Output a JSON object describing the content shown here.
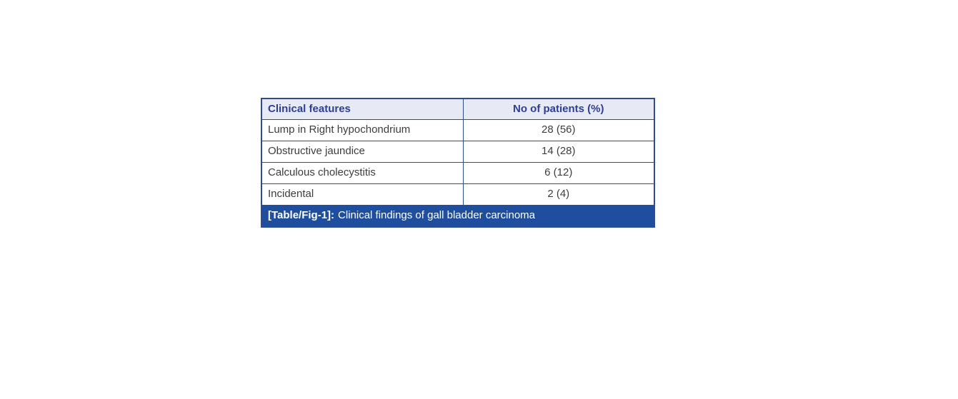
{
  "table": {
    "headers": {
      "feature": "Clinical features",
      "value": "No of patients (%)"
    },
    "rows": [
      {
        "feature": "Lump in Right hypochondrium",
        "value": "28 (56)"
      },
      {
        "feature": "Obstructive jaundice",
        "value": "14 (28)"
      },
      {
        "feature": "Calculous cholecystitis",
        "value": "6 (12)"
      },
      {
        "feature": "Incidental",
        "value": "2 (4)"
      }
    ],
    "caption": {
      "label": "[Table/Fig-1]:",
      "text": "Clinical findings of gall bladder carcinoma"
    }
  },
  "colors": {
    "header_bg": "#e7eaf5",
    "header_text": "#2d3f94",
    "border": "#2e4d8e",
    "caption_bg": "#1f4e9e",
    "caption_text": "#ffffff",
    "body_text": "#3d3d3d",
    "page_bg": "#ffffff"
  }
}
